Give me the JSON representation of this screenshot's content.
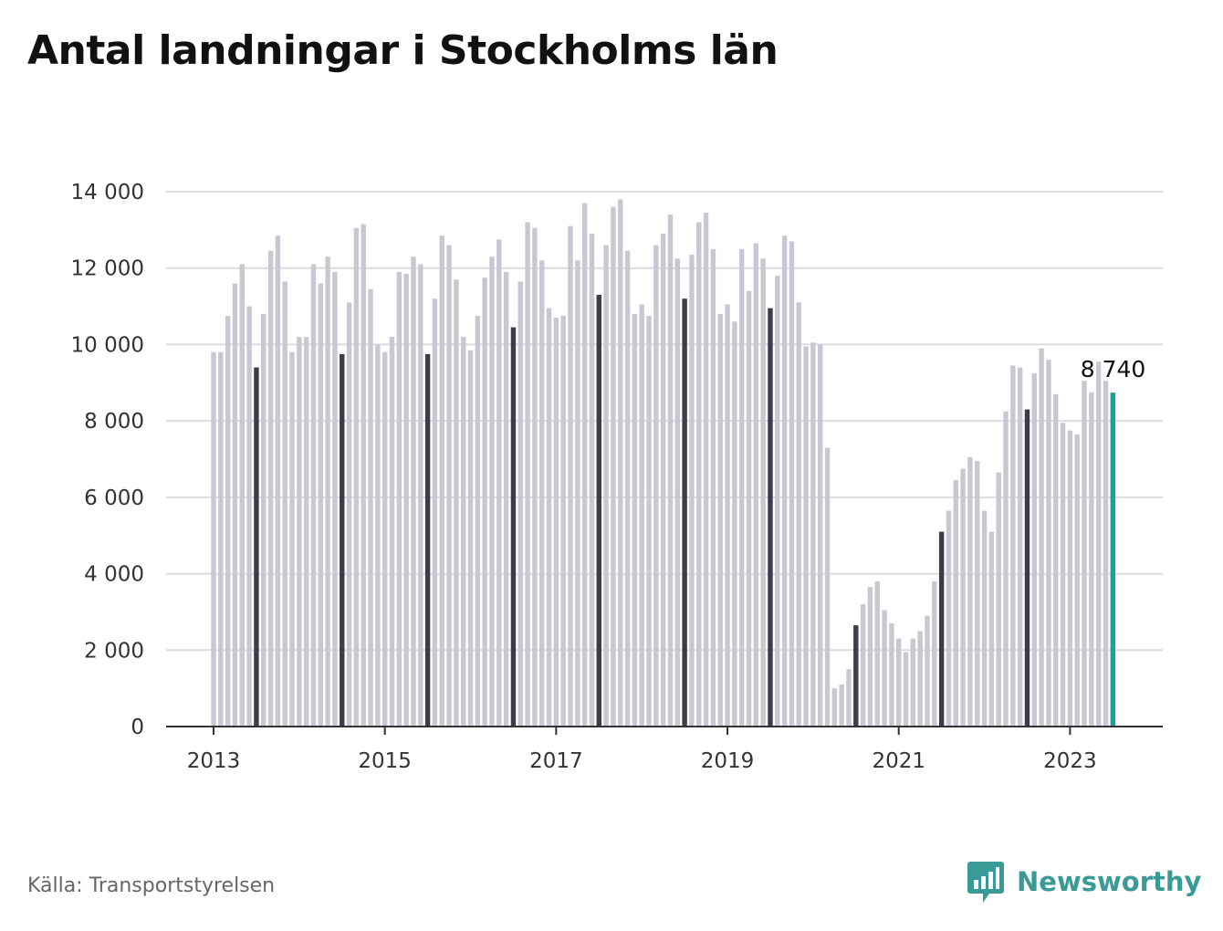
{
  "title": "Antal landningar i Stockholms län",
  "source": "Källa: Transportstyrelsen",
  "brand": {
    "name": "Newsworthy",
    "logo_icon": "newsworthy-logo-icon"
  },
  "colors": {
    "bar": "#c8c8d2",
    "highlight": "#3d3c4b",
    "latest": "#1aa39a",
    "brand": "#3a9b96",
    "grid": "#dcdcdc",
    "axis": "#333333"
  },
  "chart_data": {
    "type": "bar",
    "title": "Antal landningar i Stockholms län",
    "xlabel": "",
    "ylabel": "",
    "ylim": [
      0,
      14000
    ],
    "y_ticks": [
      0,
      2000,
      4000,
      6000,
      8000,
      10000,
      12000,
      14000
    ],
    "y_tick_labels": [
      "0",
      "2 000",
      "4 000",
      "6 000",
      "8 000",
      "10 000",
      "12 000",
      "14 000"
    ],
    "x_tick_labels": [
      "2013",
      "2015",
      "2017",
      "2019",
      "2021",
      "2023"
    ],
    "grid": true,
    "highlight_month": "July",
    "annotation": {
      "text": "8 740",
      "target": "2023-07"
    },
    "start_month": "2013-01",
    "values": [
      9800,
      9800,
      10750,
      11600,
      12100,
      11000,
      9400,
      10800,
      12450,
      12850,
      11650,
      9800,
      10200,
      10200,
      12100,
      11600,
      12300,
      11900,
      9750,
      11100,
      13050,
      13150,
      11450,
      10000,
      9800,
      10200,
      11900,
      11850,
      12300,
      12100,
      9750,
      11200,
      12850,
      12600,
      11700,
      10200,
      9850,
      10750,
      11750,
      12300,
      12750,
      11900,
      10450,
      11650,
      13200,
      13050,
      12200,
      10950,
      10700,
      10750,
      13100,
      12200,
      13700,
      12900,
      11300,
      12600,
      13600,
      13800,
      12450,
      10800,
      11050,
      10750,
      12600,
      12900,
      13400,
      12250,
      11200,
      12350,
      13200,
      13450,
      12500,
      10800,
      11050,
      10600,
      12500,
      11400,
      12650,
      12250,
      10950,
      11800,
      12850,
      12700,
      11100,
      9950,
      10050,
      10000,
      7300,
      1000,
      1100,
      1500,
      2650,
      3200,
      3650,
      3800,
      3050,
      2700,
      2300,
      1950,
      2300,
      2500,
      2900,
      3800,
      5100,
      5650,
      6450,
      6750,
      7050,
      6950,
      5650,
      5100,
      6650,
      8250,
      9450,
      9400,
      8300,
      9250,
      9900,
      9600,
      8700,
      7950,
      7750,
      7650,
      9050,
      8750,
      9550,
      9050,
      8740
    ]
  }
}
